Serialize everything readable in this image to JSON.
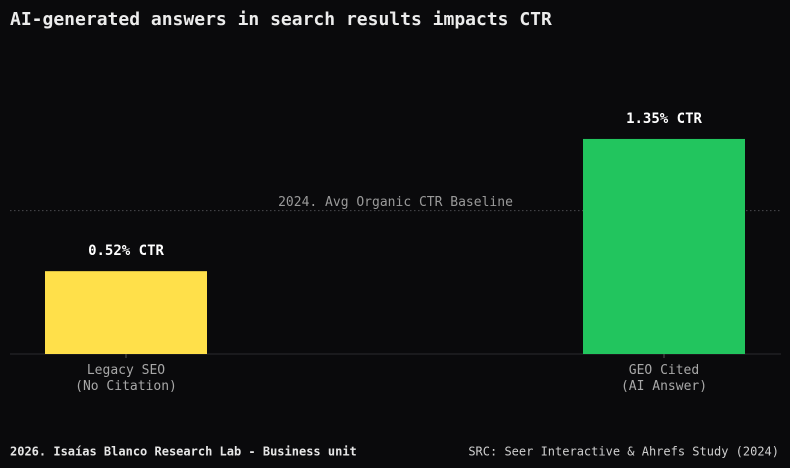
{
  "chart_data": {
    "type": "bar",
    "title": "AI-generated answers in search results impacts CTR",
    "categories": [
      "Legacy SEO\n(No Citation)",
      "GEO Cited\n(AI Answer)"
    ],
    "series": [
      {
        "name": "CTR",
        "values": [
          0.52,
          1.35
        ],
        "value_labels": [
          "0.52% CTR",
          "1.35% CTR"
        ],
        "colors": [
          "#ffe04a",
          "#22c55e"
        ]
      }
    ],
    "ylim": [
      0,
      2
    ],
    "reference_line": {
      "value": 0.9,
      "label": "2024. Avg Organic CTR Baseline"
    },
    "footer_left": "2026. Isaías Blanco Research Lab - Business unit",
    "footer_right": "SRC: Seer Interactive & Ahrefs Study (2024)"
  }
}
